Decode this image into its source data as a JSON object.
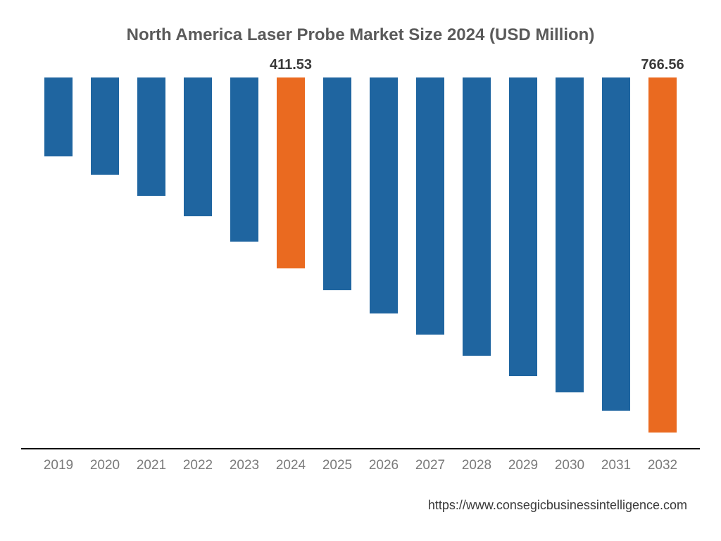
{
  "chart": {
    "type": "bar",
    "title": "North America Laser Probe Market Size 2024 (USD Million)",
    "title_color": "#5a5a5a",
    "title_fontsize": 24,
    "background_color": "#ffffff",
    "axis_color": "#000000",
    "y_max": 800,
    "categories": [
      "2019",
      "2020",
      "2021",
      "2022",
      "2023",
      "2024",
      "2025",
      "2026",
      "2027",
      "2028",
      "2029",
      "2030",
      "2031",
      "2032"
    ],
    "values": [
      170,
      210,
      255,
      300,
      355,
      411.53,
      460,
      510,
      555,
      600,
      645,
      680,
      720,
      766.56
    ],
    "bar_colors": [
      "#1f65a0",
      "#1f65a0",
      "#1f65a0",
      "#1f65a0",
      "#1f65a0",
      "#ea6a20",
      "#1f65a0",
      "#1f65a0",
      "#1f65a0",
      "#1f65a0",
      "#1f65a0",
      "#1f65a0",
      "#1f65a0",
      "#ea6a20"
    ],
    "value_labels": [
      "",
      "",
      "",
      "",
      "",
      "411.53",
      "",
      "",
      "",
      "",
      "",
      "",
      "",
      "766.56"
    ],
    "value_label_color": "#3a3a3a",
    "value_label_fontsize": 20,
    "x_label_color": "#7a7a7a",
    "x_label_fontsize": 19,
    "bar_width_ratio": 0.62
  },
  "source": {
    "text": "https://www.consegicbusinessintelligence.com",
    "color": "#3a3a3a",
    "fontsize": 18
  }
}
